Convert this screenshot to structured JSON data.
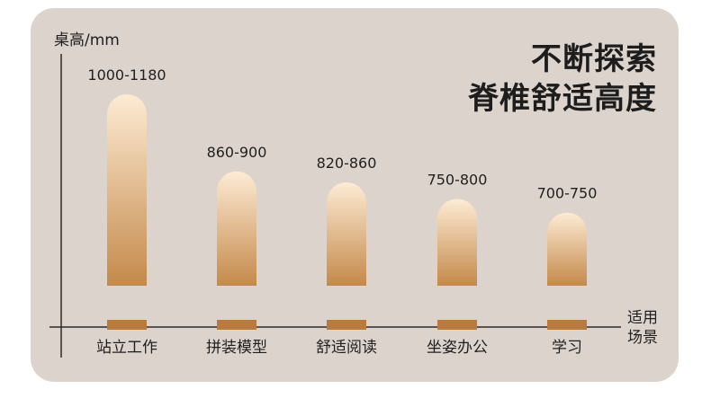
{
  "title_lines": [
    "不断探索",
    "脊椎舒适高度"
  ],
  "colors": {
    "card_bg": "#dcd3cc",
    "bar_top": "#fdebd4",
    "bar_bottom": "#c4894a",
    "base_block": "#b87a3e",
    "axis": "#2b2b2b"
  },
  "chart_data": {
    "type": "bar",
    "ylabel": "桌高/mm",
    "xlabel": [
      "适用",
      "场景"
    ],
    "categories": [
      "站立工作",
      "拼装模型",
      "舒适阅读",
      "坐姿办公",
      "学习"
    ],
    "data_labels": [
      "1000-1180",
      "860-900",
      "820-860",
      "750-800",
      "700-750"
    ],
    "ranges": [
      [
        1000,
        1180
      ],
      [
        860,
        900
      ],
      [
        820,
        860
      ],
      [
        750,
        800
      ],
      [
        700,
        750
      ]
    ],
    "grid": false,
    "legend": "none"
  }
}
